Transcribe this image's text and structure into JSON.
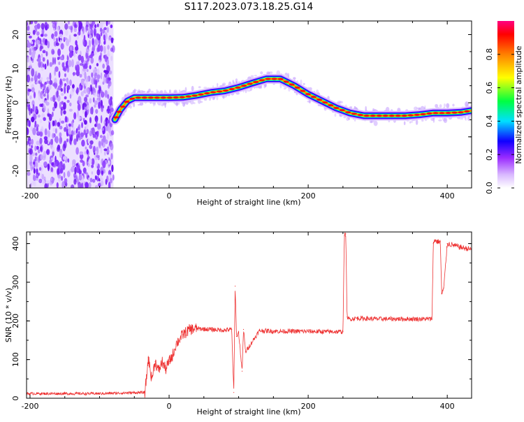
{
  "title": "S117.2023.073.18.25.G14",
  "chart_data": [
    {
      "type": "heatmap",
      "title": "",
      "xlabel": "Height of straight line (km)",
      "ylabel": "Frequency (Hz)",
      "xlim": [
        -205,
        435
      ],
      "ylim": [
        -25,
        24
      ],
      "xticks": [
        "-200",
        "0",
        "200",
        "400"
      ],
      "yticks": [
        "-20",
        "-10",
        "0",
        "10",
        "20"
      ],
      "colorbar": {
        "label": "Normalized spectral amplitude",
        "range": [
          0,
          1
        ],
        "ticks": [
          "0.0",
          "0.2",
          "0.4",
          "0.6",
          "0.8"
        ],
        "colors": [
          "#ffffff",
          "#d9b8ff",
          "#9b2cff",
          "#1000ff",
          "#00e0ff",
          "#00ff40",
          "#ffff00",
          "#ff8000",
          "#ff0000",
          "#ff0080"
        ]
      },
      "noise_region_x": [
        -205,
        -80
      ],
      "doppler_track": [
        {
          "x": -78,
          "y": -5
        },
        {
          "x": -70,
          "y": -2
        },
        {
          "x": -60,
          "y": 0.5
        },
        {
          "x": -50,
          "y": 1.5
        },
        {
          "x": -40,
          "y": 1.5
        },
        {
          "x": -20,
          "y": 1.5
        },
        {
          "x": 0,
          "y": 1.5
        },
        {
          "x": 20,
          "y": 1.6
        },
        {
          "x": 40,
          "y": 2.2
        },
        {
          "x": 60,
          "y": 3.0
        },
        {
          "x": 80,
          "y": 3.5
        },
        {
          "x": 100,
          "y": 4.5
        },
        {
          "x": 120,
          "y": 5.8
        },
        {
          "x": 140,
          "y": 7.0
        },
        {
          "x": 160,
          "y": 7.0
        },
        {
          "x": 180,
          "y": 5.0
        },
        {
          "x": 200,
          "y": 2.5
        },
        {
          "x": 220,
          "y": 0.5
        },
        {
          "x": 240,
          "y": -1.5
        },
        {
          "x": 260,
          "y": -3.0
        },
        {
          "x": 280,
          "y": -3.8
        },
        {
          "x": 300,
          "y": -3.8
        },
        {
          "x": 340,
          "y": -3.8
        },
        {
          "x": 360,
          "y": -3.5
        },
        {
          "x": 380,
          "y": -3.0
        },
        {
          "x": 400,
          "y": -3.0
        },
        {
          "x": 420,
          "y": -2.8
        },
        {
          "x": 435,
          "y": -2.3
        }
      ]
    },
    {
      "type": "line",
      "title": "",
      "xlabel": "Height of straight line (km)",
      "ylabel": "SNR (10 * v/v)",
      "xlim": [
        -205,
        435
      ],
      "ylim": [
        0,
        430
      ],
      "xticks": [
        "-200",
        "0",
        "200",
        "400"
      ],
      "yticks": [
        "0",
        "100",
        "200",
        "300",
        "400"
      ],
      "color": "#ee3333",
      "series": [
        {
          "x": [
            -205,
            -150,
            -100,
            -60,
            -35,
            -32,
            -30,
            -25,
            -20,
            -15,
            -10,
            -5,
            0,
            5,
            10,
            20,
            30,
            40,
            60,
            80,
            90,
            93,
            95,
            97,
            100,
            105,
            107,
            110,
            130,
            160,
            200,
            230,
            250,
            252,
            254,
            256,
            258,
            260,
            270,
            300,
            340,
            370,
            378,
            380,
            382,
            385,
            390,
            392,
            395,
            400,
            410,
            420,
            435
          ],
          "y": [
            12,
            12,
            12,
            14,
            15,
            60,
            105,
            50,
            95,
            70,
            95,
            75,
            95,
            110,
            140,
            165,
            178,
            180,
            178,
            176,
            178,
            15,
            290,
            160,
            170,
            70,
            178,
            120,
            175,
            173,
            173,
            172,
            172,
            420,
            425,
            210,
            205,
            205,
            207,
            205,
            205,
            205,
            205,
            400,
            410,
            405,
            405,
            270,
            285,
            400,
            395,
            390,
            385
          ]
        }
      ]
    }
  ]
}
